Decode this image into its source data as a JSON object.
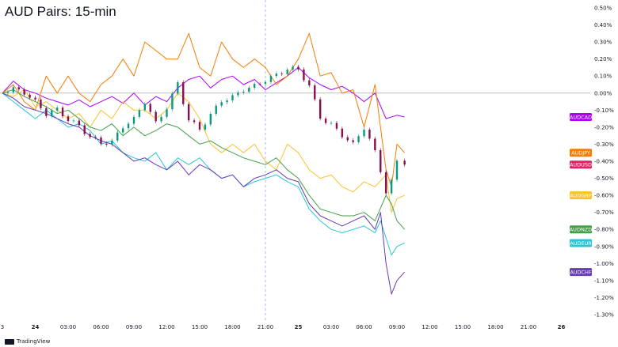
{
  "title": "AUD Pairs: 15-min",
  "branding": "TradingView",
  "chart_data": {
    "type": "line",
    "ylim": [
      -1.3,
      0.5
    ],
    "y_ticks": [
      0.5,
      0.4,
      0.3,
      0.2,
      0.1,
      0.0,
      -0.1,
      -0.2,
      -0.3,
      -0.4,
      -0.5,
      -0.6,
      -0.7,
      -0.8,
      -0.9,
      -1.0,
      -1.1,
      -1.2,
      -1.3
    ],
    "y_tick_labels": [
      "0.50%",
      "0.40%",
      "0.30%",
      "0.20%",
      "0.10%",
      "0.00%",
      "-0.10%",
      "-0.20%",
      "-0.30%",
      "-0.40%",
      "-0.50%",
      "-0.60%",
      "-0.70%",
      "-0.80%",
      "-0.90%",
      "-1.00%",
      "-1.10%",
      "-1.20%",
      "-1.30%"
    ],
    "x_range_hours": [
      -3,
      72
    ],
    "x_ticks": [
      {
        "h": -3,
        "label": "3",
        "bold": false
      },
      {
        "h": 0,
        "label": "24",
        "bold": true
      },
      {
        "h": 3,
        "label": "03:00",
        "bold": false
      },
      {
        "h": 6,
        "label": "06:00",
        "bold": false
      },
      {
        "h": 9,
        "label": "09:00",
        "bold": false
      },
      {
        "h": 12,
        "label": "12:00",
        "bold": false
      },
      {
        "h": 15,
        "label": "15:00",
        "bold": false
      },
      {
        "h": 18,
        "label": "18:00",
        "bold": false
      },
      {
        "h": 21,
        "label": "21:00",
        "bold": false
      },
      {
        "h": 24,
        "label": "25",
        "bold": true
      },
      {
        "h": 27,
        "label": "03:00",
        "bold": false
      },
      {
        "h": 30,
        "label": "06:00",
        "bold": false
      },
      {
        "h": 33,
        "label": "09:00",
        "bold": false
      },
      {
        "h": 36,
        "label": "12:00",
        "bold": false
      },
      {
        "h": 39,
        "label": "15:00",
        "bold": false
      },
      {
        "h": 42,
        "label": "18:00",
        "bold": false
      },
      {
        "h": 45,
        "label": "21:00",
        "bold": false
      },
      {
        "h": 48,
        "label": "26",
        "bold": true
      }
    ],
    "crosshair_h": 21,
    "zero_line": 0.0,
    "grid": false,
    "series": [
      {
        "name": "AUDCAD",
        "color": "#aa00ff",
        "x": [
          -3,
          -2,
          -1,
          0,
          1,
          2,
          3,
          4,
          5,
          6,
          7,
          8,
          9,
          10,
          11,
          12,
          13,
          14,
          15,
          16,
          17,
          18,
          19,
          20,
          21,
          22,
          23,
          24,
          25,
          26,
          27,
          28,
          29,
          30,
          31,
          32,
          33,
          33.7
        ],
        "y": [
          0.0,
          0.07,
          0.02,
          0.0,
          -0.03,
          -0.05,
          -0.07,
          -0.04,
          -0.08,
          -0.05,
          -0.02,
          -0.06,
          0.0,
          -0.07,
          -0.02,
          -0.05,
          0.03,
          0.08,
          0.1,
          0.03,
          0.08,
          0.1,
          0.05,
          0.08,
          0.02,
          0.06,
          0.1,
          0.15,
          0.09,
          0.05,
          0.02,
          0.04,
          0.0,
          -0.05,
          0.0,
          -0.15,
          -0.13,
          -0.14
        ]
      },
      {
        "name": "AUDJPY",
        "color": "#f57c00",
        "x": [
          -3,
          -2,
          -1,
          0,
          1,
          2,
          3,
          4,
          5,
          6,
          7,
          8,
          9,
          10,
          11,
          12,
          13,
          14,
          15,
          16,
          17,
          18,
          19,
          20,
          21,
          22,
          23,
          24,
          25,
          26,
          27,
          28,
          29,
          30,
          31,
          32,
          32.5,
          33,
          33.7
        ],
        "y": [
          0.0,
          0.05,
          -0.05,
          -0.1,
          0.1,
          0.0,
          0.1,
          0.0,
          -0.05,
          0.05,
          0.1,
          0.2,
          0.1,
          0.3,
          0.25,
          0.2,
          0.2,
          0.35,
          0.15,
          0.1,
          0.3,
          0.2,
          0.15,
          0.2,
          0.15,
          0.05,
          0.1,
          0.2,
          0.35,
          0.1,
          0.12,
          0.0,
          0.02,
          -0.2,
          0.05,
          -0.45,
          -0.55,
          -0.3,
          -0.35
        ]
      },
      {
        "name": "AUDUSD",
        "color": "#e91e63",
        "x": [
          -3,
          -2,
          -1,
          0,
          1,
          2,
          3,
          4,
          5,
          6,
          7,
          8,
          9,
          10,
          11,
          12,
          13,
          14,
          15,
          16,
          17,
          18,
          19,
          20,
          21,
          22,
          23,
          24,
          25,
          26,
          27,
          28,
          29,
          30,
          31,
          31.5,
          32,
          32.5,
          33,
          33.7
        ],
        "y": [
          0.0,
          0.03,
          0.0,
          -0.05,
          -0.12,
          -0.1,
          -0.15,
          -0.2,
          -0.25,
          -0.3,
          -0.28,
          -0.2,
          -0.15,
          -0.05,
          -0.18,
          -0.08,
          0.05,
          -0.15,
          -0.22,
          -0.12,
          -0.05,
          -0.02,
          0.02,
          0.04,
          0.08,
          0.1,
          0.15,
          0.13,
          0.05,
          -0.15,
          -0.18,
          -0.25,
          -0.3,
          -0.2,
          -0.35,
          -0.45,
          -0.6,
          -0.5,
          -0.4,
          -0.42
        ]
      },
      {
        "name": "AUDGBP",
        "color": "#fbc02d",
        "x": [
          -3,
          -2,
          -1,
          0,
          1,
          2,
          3,
          4,
          5,
          6,
          7,
          8,
          9,
          10,
          11,
          12,
          13,
          14,
          15,
          16,
          17,
          18,
          19,
          20,
          21,
          22,
          23,
          24,
          25,
          26,
          27,
          28,
          29,
          30,
          31,
          32,
          32.5,
          33,
          33.7
        ],
        "y": [
          0.0,
          -0.02,
          0.02,
          -0.08,
          -0.05,
          -0.1,
          -0.15,
          -0.12,
          -0.2,
          -0.1,
          -0.15,
          -0.05,
          -0.1,
          -0.1,
          -0.15,
          -0.1,
          0.0,
          -0.05,
          -0.15,
          -0.3,
          -0.35,
          -0.3,
          -0.35,
          -0.3,
          -0.4,
          -0.45,
          -0.3,
          -0.35,
          -0.45,
          -0.5,
          -0.48,
          -0.55,
          -0.58,
          -0.52,
          -0.55,
          -0.48,
          -0.7,
          -0.62,
          -0.6
        ]
      },
      {
        "name": "AUDNZD",
        "color": "#43a047",
        "x": [
          -3,
          -2,
          -1,
          0,
          1,
          2,
          3,
          4,
          5,
          6,
          7,
          8,
          9,
          10,
          11,
          12,
          13,
          14,
          15,
          16,
          17,
          18,
          19,
          20,
          21,
          22,
          23,
          24,
          25,
          26,
          27,
          28,
          29,
          30,
          31,
          32,
          32.5,
          33,
          33.7
        ],
        "y": [
          0.0,
          0.02,
          -0.02,
          -0.05,
          -0.08,
          -0.12,
          -0.1,
          -0.15,
          -0.2,
          -0.22,
          -0.18,
          -0.25,
          -0.2,
          -0.25,
          -0.22,
          -0.18,
          -0.2,
          -0.25,
          -0.3,
          -0.28,
          -0.32,
          -0.35,
          -0.38,
          -0.4,
          -0.42,
          -0.38,
          -0.45,
          -0.5,
          -0.6,
          -0.68,
          -0.7,
          -0.72,
          -0.72,
          -0.7,
          -0.75,
          -0.6,
          -0.65,
          -0.75,
          -0.8
        ]
      },
      {
        "name": "AUDEUR",
        "color": "#26c6da",
        "x": [
          -3,
          -2,
          -1,
          0,
          1,
          2,
          3,
          4,
          5,
          6,
          7,
          8,
          9,
          10,
          11,
          12,
          13,
          14,
          15,
          16,
          17,
          18,
          19,
          20,
          21,
          22,
          23,
          24,
          25,
          26,
          27,
          28,
          29,
          30,
          31,
          31.5,
          32,
          32.5,
          33,
          33.7
        ],
        "y": [
          0.0,
          -0.05,
          -0.1,
          -0.15,
          -0.1,
          -0.15,
          -0.2,
          -0.18,
          -0.22,
          -0.3,
          -0.28,
          -0.35,
          -0.38,
          -0.4,
          -0.35,
          -0.45,
          -0.38,
          -0.42,
          -0.38,
          -0.45,
          -0.5,
          -0.48,
          -0.55,
          -0.52,
          -0.5,
          -0.48,
          -0.52,
          -0.55,
          -0.68,
          -0.75,
          -0.8,
          -0.82,
          -0.8,
          -0.78,
          -0.82,
          -0.75,
          -0.85,
          -0.95,
          -0.9,
          -0.88
        ]
      },
      {
        "name": "AUDCHF",
        "color": "#673ab7",
        "x": [
          -3,
          -2,
          -1,
          0,
          1,
          2,
          3,
          4,
          5,
          6,
          7,
          8,
          9,
          10,
          11,
          12,
          13,
          14,
          15,
          16,
          17,
          18,
          19,
          20,
          21,
          22,
          23,
          24,
          25,
          26,
          27,
          28,
          29,
          30,
          31,
          31.5,
          32,
          32.5,
          33,
          33.7
        ],
        "y": [
          0.0,
          -0.03,
          -0.08,
          -0.1,
          -0.12,
          -0.15,
          -0.18,
          -0.2,
          -0.25,
          -0.28,
          -0.3,
          -0.35,
          -0.4,
          -0.38,
          -0.42,
          -0.45,
          -0.4,
          -0.48,
          -0.42,
          -0.45,
          -0.5,
          -0.48,
          -0.55,
          -0.5,
          -0.48,
          -0.45,
          -0.5,
          -0.52,
          -0.65,
          -0.72,
          -0.75,
          -0.78,
          -0.75,
          -0.72,
          -0.8,
          -0.7,
          -1.0,
          -1.18,
          -1.1,
          -1.05
        ]
      }
    ],
    "candles_series": "AUDUSD",
    "labels": [
      {
        "name": "AUDCAD",
        "value": -0.14,
        "color": "#aa00ff"
      },
      {
        "name": "AUDJPY",
        "value": -0.35,
        "color": "#f57c00"
      },
      {
        "name": "AUDUSD",
        "value": -0.42,
        "color": "#e91e63"
      },
      {
        "name": "AUDGBP",
        "value": -0.6,
        "color": "#fbc02d"
      },
      {
        "name": "AUDNZD",
        "value": -0.8,
        "color": "#43a047"
      },
      {
        "name": "AUDEUR",
        "value": -0.88,
        "color": "#26c6da"
      },
      {
        "name": "AUDCHF",
        "value": -1.05,
        "color": "#673ab7"
      }
    ],
    "candle_colors": {
      "up": "#089981",
      "down": "#880e4f"
    }
  }
}
